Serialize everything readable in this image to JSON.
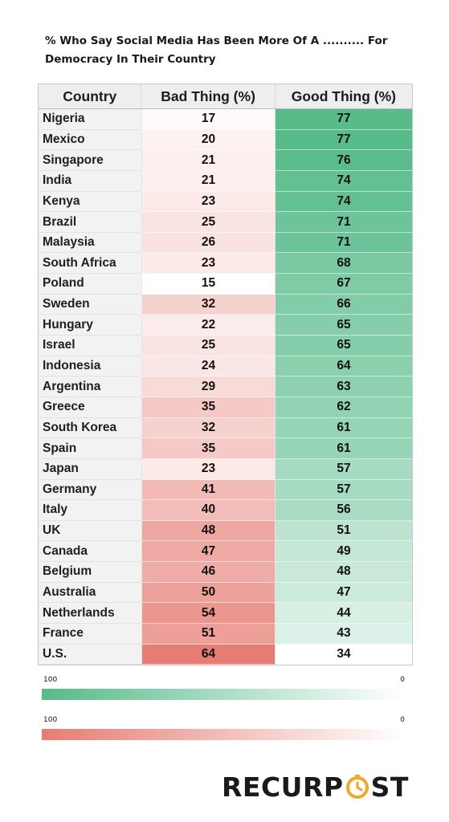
{
  "title": "% Who Say Social Media Has Been More Of A .......... For Democracy In Their Country",
  "colors": {
    "good": "#57bb8a",
    "bad": "#e67c73"
  },
  "chart_data": {
    "type": "table",
    "title": "% Who Say Social Media Has Been More Of A .......... For Democracy In Their Country",
    "columns": [
      "Country",
      "Bad Thing (%)",
      "Good Thing (%)"
    ],
    "rows": [
      {
        "country": "Nigeria",
        "bad": 17,
        "good": 77
      },
      {
        "country": "Mexico",
        "bad": 20,
        "good": 77
      },
      {
        "country": "Singapore",
        "bad": 21,
        "good": 76
      },
      {
        "country": "India",
        "bad": 21,
        "good": 74
      },
      {
        "country": "Kenya",
        "bad": 23,
        "good": 74
      },
      {
        "country": "Brazil",
        "bad": 25,
        "good": 71
      },
      {
        "country": "Malaysia",
        "bad": 26,
        "good": 71
      },
      {
        "country": "South Africa",
        "bad": 23,
        "good": 68
      },
      {
        "country": "Poland",
        "bad": 15,
        "good": 67
      },
      {
        "country": "Sweden",
        "bad": 32,
        "good": 66
      },
      {
        "country": "Hungary",
        "bad": 22,
        "good": 65
      },
      {
        "country": "Israel",
        "bad": 25,
        "good": 65
      },
      {
        "country": "Indonesia",
        "bad": 24,
        "good": 64
      },
      {
        "country": "Argentina",
        "bad": 29,
        "good": 63
      },
      {
        "country": "Greece",
        "bad": 35,
        "good": 62
      },
      {
        "country": "South Korea",
        "bad": 32,
        "good": 61
      },
      {
        "country": "Spain",
        "bad": 35,
        "good": 61
      },
      {
        "country": "Japan",
        "bad": 23,
        "good": 57
      },
      {
        "country": "Germany",
        "bad": 41,
        "good": 57
      },
      {
        "country": "Italy",
        "bad": 40,
        "good": 56
      },
      {
        "country": "UK",
        "bad": 48,
        "good": 51
      },
      {
        "country": "Canada",
        "bad": 47,
        "good": 49
      },
      {
        "country": "Belgium",
        "bad": 46,
        "good": 48
      },
      {
        "country": "Australia",
        "bad": 50,
        "good": 47
      },
      {
        "country": "Netherlands",
        "bad": 54,
        "good": 44
      },
      {
        "country": "France",
        "bad": 51,
        "good": 43
      },
      {
        "country": "U.S.",
        "bad": 64,
        "good": 34
      }
    ],
    "legend": [
      {
        "name": "good",
        "max_label": "100",
        "min_label": "0"
      },
      {
        "name": "bad",
        "max_label": "100",
        "min_label": "0"
      }
    ]
  },
  "brand": {
    "text_before": "RECURP",
    "text_after": "ST"
  }
}
